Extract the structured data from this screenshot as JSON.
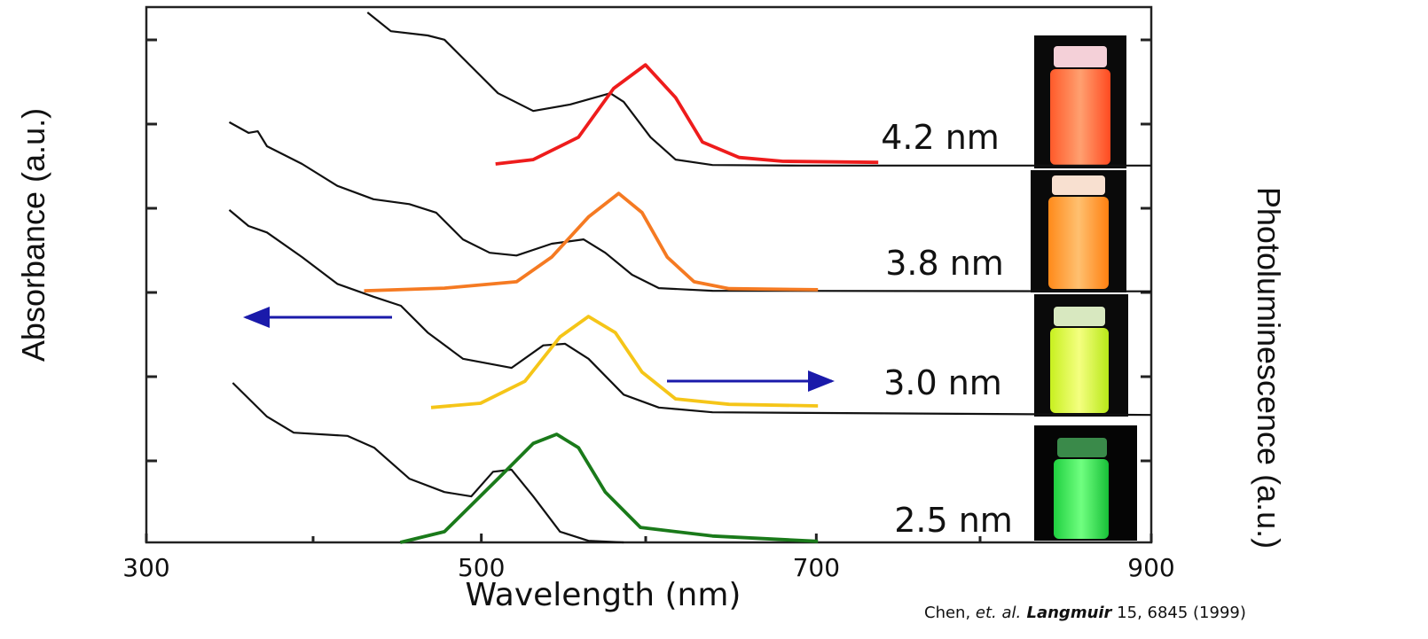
{
  "chart_data": {
    "type": "line",
    "xlabel": "Wavelength (nm)",
    "ylabel": "Absorbance (a.u.)",
    "y2label": "Photoluminescence (a.u.)",
    "xlim": [
      300,
      900
    ],
    "xticks": [
      300,
      500,
      700,
      900
    ],
    "ylim": [
      0,
      100
    ],
    "annotations": [
      "4.2 nm",
      "3.8 nm",
      "3.0 nm",
      "2.5 nm"
    ],
    "citation": [
      "Chen, ",
      "et. al.",
      " Langmuir",
      " 15, 6845 (1999)"
    ],
    "series": [
      {
        "color": "#111111",
        "x": [
          432,
          446,
          468,
          478,
          494,
          510,
          531,
          553,
          577,
          585,
          601,
          616,
          638,
          691,
          744,
          900
        ],
        "values": [
          99,
          95.5,
          94.7,
          93.9,
          88.9,
          83.9,
          80.6,
          81.8,
          83.9,
          82.3,
          75.7,
          71.5,
          70.5,
          70.4,
          70.4,
          70.4
        ]
      },
      {
        "color": "#ee1c1c",
        "x": [
          508.5,
          531,
          558,
          579,
          598,
          616,
          632,
          654,
          680,
          737
        ],
        "values": [
          70.7,
          71.5,
          75.7,
          84.8,
          89.2,
          83.1,
          74.8,
          71.9,
          71.2,
          71.0
        ]
      },
      {
        "color": "#111111",
        "x": [
          349.5,
          361,
          366.5,
          372,
          393,
          414,
          435.6,
          457,
          473,
          489,
          505,
          521,
          542,
          561,
          574,
          590,
          606,
          638,
          900
        ],
        "values": [
          78.5,
          76.5,
          76.8,
          74.0,
          70.7,
          66.6,
          64.1,
          63.2,
          61.6,
          56.6,
          54.1,
          53.6,
          55.8,
          56.6,
          54.1,
          50.0,
          47.5,
          47.0,
          46.9
        ]
      },
      {
        "color": "#f57a22",
        "x": [
          430,
          478,
          521,
          542,
          564,
          582,
          596,
          611,
          627,
          648,
          701
        ],
        "values": [
          47.0,
          47.5,
          48.7,
          53.3,
          60.8,
          65.2,
          61.6,
          53.3,
          48.7,
          47.4,
          47.2
        ]
      },
      {
        "color": "#111111",
        "x": [
          349.5,
          361,
          372,
          393,
          414,
          435.6,
          452,
          468,
          489,
          518,
          537,
          550,
          564,
          585,
          606,
          638,
          900
        ],
        "values": [
          62.1,
          59.1,
          57.9,
          53.3,
          48.3,
          45.9,
          44.2,
          39.2,
          34.3,
          32.6,
          36.8,
          37.1,
          34.3,
          27.6,
          25.2,
          24.3,
          23.8
        ]
      },
      {
        "color": "#f5c518",
        "x": [
          470,
          499.5,
          526,
          547,
          564,
          580,
          596,
          616,
          648,
          701
        ],
        "values": [
          25.2,
          26.0,
          30.1,
          38.4,
          42.2,
          39.2,
          31.8,
          26.8,
          25.8,
          25.5
        ]
      },
      {
        "color": "#111111",
        "x": [
          351.6,
          372,
          388,
          420,
          436,
          457,
          478,
          494,
          507,
          518,
          531,
          547,
          564,
          585
        ],
        "values": [
          29.8,
          23.5,
          20.5,
          19.9,
          17.7,
          11.9,
          9.4,
          8.6,
          13.2,
          13.6,
          8.6,
          2.0,
          0.3,
          0
        ]
      },
      {
        "color": "#1a7a1a",
        "x": [
          451.6,
          478,
          510,
          531,
          545,
          558,
          574,
          595,
          638,
          701
        ],
        "values": [
          0,
          2.0,
          11.9,
          18.5,
          20.2,
          17.7,
          9.4,
          2.8,
          1.2,
          0.2
        ]
      }
    ]
  }
}
